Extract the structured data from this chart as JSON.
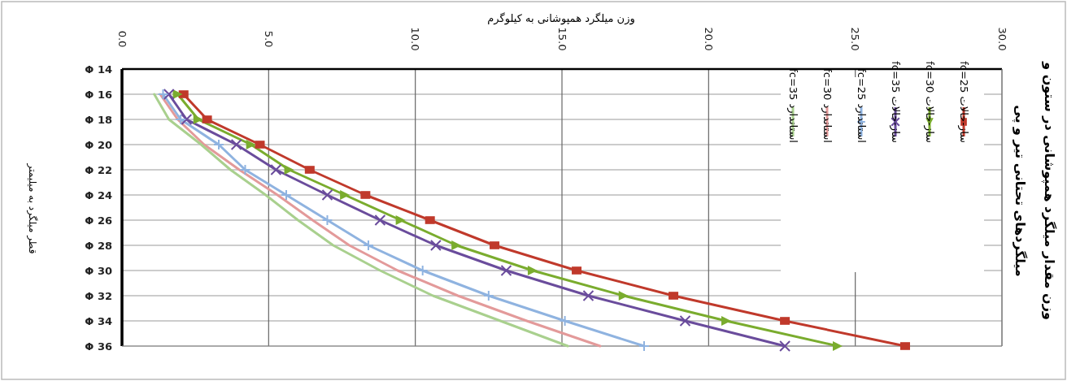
{
  "chart_data": {
    "type": "line",
    "orientation": "horizontal",
    "title": "وزن مقدار میلگرد همپوشانی در ستون و میلگردهای تحتانی تیر و پی",
    "xlabel": "وزن میلگرد همپوشانی به کیلوگرم",
    "ylabel": "قطر میلگرد به میلیمتر",
    "categories": [
      "Φ 14",
      "Φ 16",
      "Φ 18",
      "Φ 20",
      "Φ 22",
      "Φ 24",
      "Φ 26",
      "Φ 28",
      "Φ 30",
      "Φ 32",
      "Φ 34",
      "Φ 36"
    ],
    "xlim": [
      0,
      30
    ],
    "xticks": [
      {
        "value": 0,
        "label": "0.0"
      },
      {
        "value": 5,
        "label": "5.0"
      },
      {
        "value": 10,
        "label": "10.0"
      },
      {
        "value": 15,
        "label": "15.0"
      },
      {
        "value": 20,
        "label": "20.0"
      },
      {
        "value": 25,
        "label": "25.0"
      },
      {
        "value": 30,
        "label": "30.0"
      }
    ],
    "grid": true,
    "legend": "right",
    "series": [
      {
        "name": "ساز-حالات fc=25",
        "color": "#c0392b",
        "marker": "square",
        "values": [
          null,
          2.1,
          2.9,
          4.7,
          6.4,
          8.3,
          10.5,
          12.7,
          15.5,
          18.8,
          22.6,
          26.7
        ]
      },
      {
        "name": "ساز-حالات fc=30",
        "color": "#7aac2e",
        "marker": "triangle",
        "values": [
          null,
          1.9,
          2.6,
          4.4,
          5.7,
          7.6,
          9.5,
          11.4,
          14.0,
          17.1,
          20.6,
          24.4
        ]
      },
      {
        "name": "ساز-حالات fc=35",
        "color": "#6a4c9c",
        "marker": "cross",
        "values": [
          null,
          1.6,
          2.2,
          3.9,
          5.25,
          7.0,
          8.8,
          10.7,
          13.1,
          15.9,
          19.2,
          22.6
        ]
      },
      {
        "name": "استاندارد fc=25",
        "color": "#8fb3e0",
        "marker": "plus",
        "values": [
          null,
          1.4,
          2.0,
          3.3,
          4.2,
          5.6,
          7.0,
          8.4,
          10.25,
          12.5,
          15.1,
          17.8
        ]
      },
      {
        "name": "استاندارد fc=30",
        "color": "#e39a9a",
        "marker": "none",
        "values": [
          null,
          1.3,
          1.9,
          2.8,
          4.0,
          5.3,
          6.5,
          7.75,
          9.4,
          11.45,
          13.8,
          16.3
        ]
      },
      {
        "name": "استاندارد fc=35",
        "color": "#a9d08e",
        "marker": "none",
        "values": [
          null,
          1.1,
          1.6,
          2.7,
          3.7,
          4.9,
          6.0,
          7.2,
          8.8,
          10.6,
          12.9,
          15.2
        ]
      }
    ]
  }
}
